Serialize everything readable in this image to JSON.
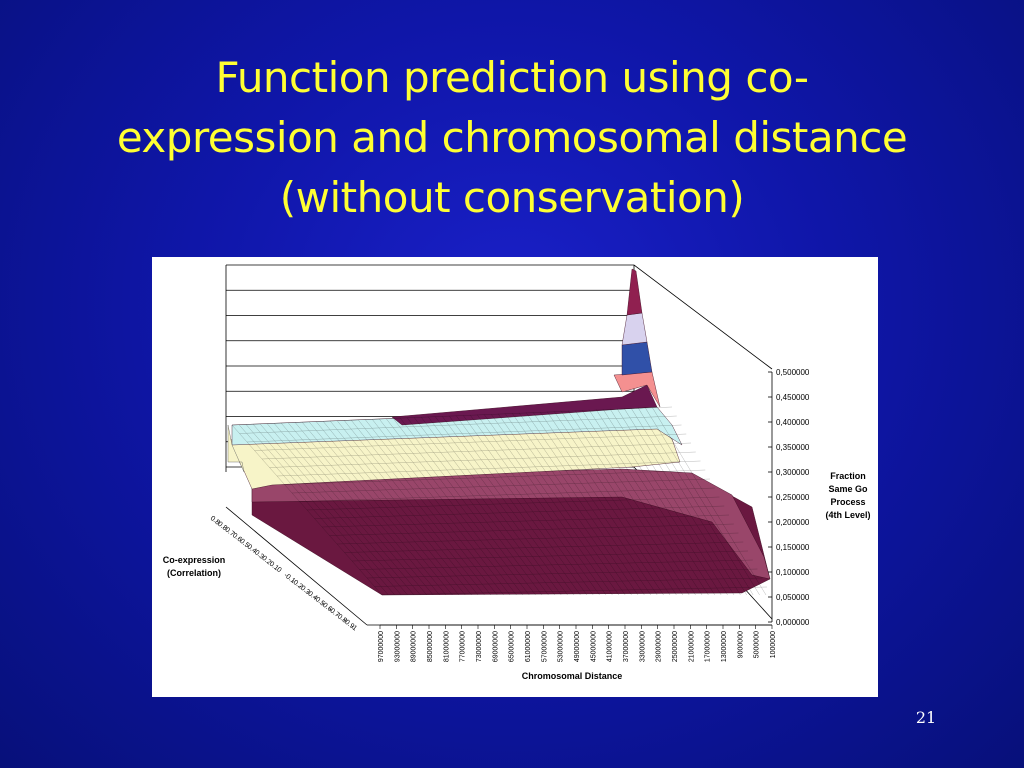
{
  "slide": {
    "title": "Function prediction using co-expression and chromosomal distance (without conservation)",
    "slide_number": "21"
  },
  "chart_data": {
    "type": "surface",
    "title": "",
    "zlabel": "Fraction Same Go Process (4th Level)",
    "zlabel_lines": [
      "Fraction",
      "Same Go",
      "Process",
      "(4th Level)"
    ],
    "ylabel": "Co-expression (Correlation)",
    "ylabel_lines": [
      "Co-expression",
      "(Correlation)"
    ],
    "xlabel": "Chromosomal Distance",
    "z_ticks": [
      "0,000000",
      "0,050000",
      "0,100000",
      "0,150000",
      "0,200000",
      "0,250000",
      "0,300000",
      "0,350000",
      "0,400000",
      "0,450000",
      "0,500000"
    ],
    "z_values": [
      0,
      0.05,
      0.1,
      0.15,
      0.2,
      0.25,
      0.3,
      0.35,
      0.4,
      0.45,
      0.5
    ],
    "zlim": [
      0,
      0.5
    ],
    "x_ticks": [
      "97000000",
      "93000000",
      "89000000",
      "85000000",
      "81000000",
      "77000000",
      "73000000",
      "69000000",
      "65000000",
      "61000000",
      "57000000",
      "53000000",
      "49000000",
      "45000000",
      "41000000",
      "37000000",
      "33000000",
      "29000000",
      "25000000",
      "21000000",
      "17000000",
      "13000000",
      "9000000",
      "5000000",
      "1000000"
    ],
    "y_ticks": [
      "0.8",
      "0.8",
      "0.7",
      "0.6",
      "0.5",
      "0.4",
      "0.3",
      "0.2",
      "0.1",
      "0",
      "-0.1",
      "-0.2",
      "-0.3",
      "-0.4",
      "-0.5",
      "-0.6",
      "-0.7",
      "-0.8",
      "-0.9",
      "-1"
    ],
    "band_colors": [
      "#6a1840",
      "#99466a",
      "#f7f4c8",
      "#c8f0f0",
      "#6a1850",
      "#f49090",
      "#3050a8",
      "#d8d2ee",
      "#902050"
    ],
    "peak": {
      "x": "1000000",
      "y": "0.8",
      "z": 0.5
    },
    "grid": true
  }
}
